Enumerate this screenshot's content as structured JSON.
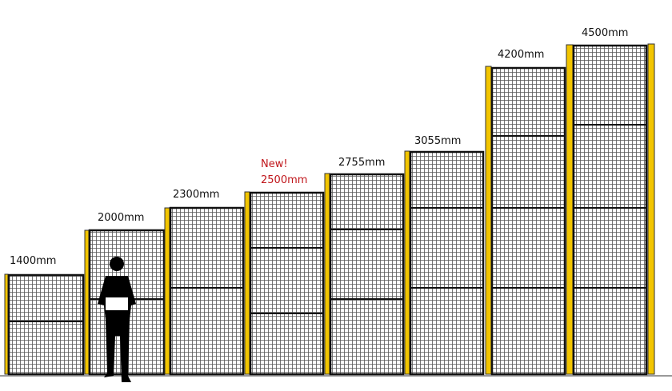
{
  "panels": [
    {
      "label": "1400mm"
    },
    {
      "label": "2000mm"
    },
    {
      "label": "2300mm"
    },
    {
      "badge": "New!",
      "label": "2500mm"
    },
    {
      "label": "2755mm"
    },
    {
      "label": "3055mm"
    },
    {
      "label": "4200mm"
    },
    {
      "label": "4500mm"
    }
  ]
}
